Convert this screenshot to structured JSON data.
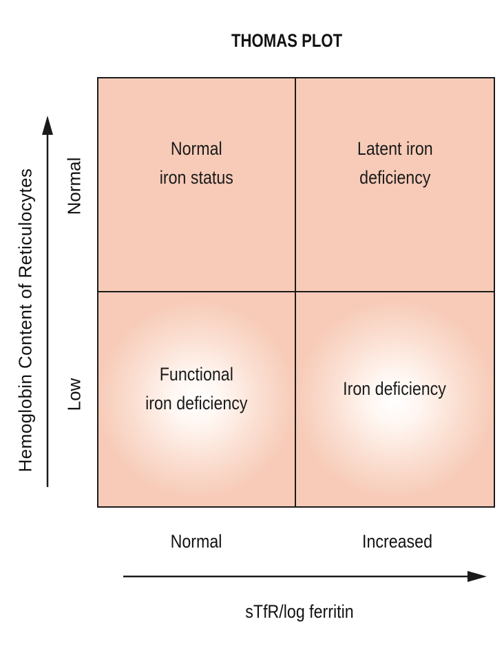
{
  "title": "THOMAS PLOT",
  "y_axis": {
    "label": "Hemoglobin Content of Reticulocytes",
    "levels": [
      "Normal",
      "Low"
    ]
  },
  "x_axis": {
    "label": "sTfR/log ferritin",
    "levels": [
      "Normal",
      "Increased"
    ]
  },
  "quadrants": {
    "top_left": "Normal\niron status",
    "top_right": "Latent iron\ndeficiency",
    "bottom_left": "Functional\niron deficiency",
    "bottom_right": "Iron deficiency"
  },
  "colors": {
    "cell_fill": "#f7cbb8",
    "cell_highlight": "#ffffff",
    "line": "#1a1a1a"
  }
}
